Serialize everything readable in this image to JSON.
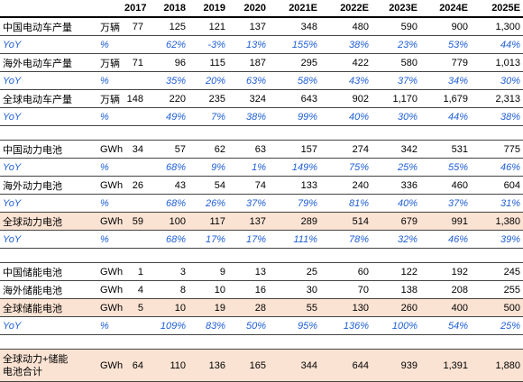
{
  "table": {
    "columns": [
      "2017",
      "2018",
      "2019",
      "2020",
      "2021E",
      "2022E",
      "2023E",
      "2024E",
      "2025E"
    ],
    "groups": [
      {
        "rows": [
          {
            "label": [
              "中国电动车产量"
            ],
            "unit": "万辆",
            "values": [
              "77",
              "125",
              "121",
              "137",
              "348",
              "480",
              "590",
              "900",
              "1,300"
            ]
          },
          {
            "label": [
              "YoY"
            ],
            "unit": "%",
            "italic": true,
            "values": [
              null,
              "62%",
              "-3%",
              "13%",
              "155%",
              "38%",
              "23%",
              "53%",
              "44%"
            ]
          },
          {
            "label": [
              "海外电动车产量"
            ],
            "unit": "万辆",
            "values": [
              "71",
              "96",
              "115",
              "187",
              "295",
              "422",
              "580",
              "779",
              "1,013"
            ]
          },
          {
            "label": [
              "YoY"
            ],
            "unit": "%",
            "italic": true,
            "values": [
              null,
              "35%",
              "20%",
              "63%",
              "58%",
              "43%",
              "37%",
              "34%",
              "30%"
            ]
          },
          {
            "label": [
              "全球电动车产量"
            ],
            "unit": "万辆",
            "values": [
              "148",
              "220",
              "235",
              "324",
              "643",
              "902",
              "1,170",
              "1,679",
              "2,313"
            ]
          },
          {
            "label": [
              "YoY"
            ],
            "unit": "%",
            "italic": true,
            "values": [
              null,
              "49%",
              "7%",
              "38%",
              "99%",
              "40%",
              "30%",
              "44%",
              "38%"
            ]
          }
        ]
      },
      {
        "rows": [
          {
            "label": [
              "中国动力电池"
            ],
            "unit": "GWh",
            "values": [
              "34",
              "57",
              "62",
              "63",
              "157",
              "274",
              "342",
              "531",
              "775"
            ]
          },
          {
            "label": [
              "YoY"
            ],
            "unit": "%",
            "italic": true,
            "values": [
              null,
              "68%",
              "9%",
              "1%",
              "149%",
              "75%",
              "25%",
              "55%",
              "46%"
            ]
          },
          {
            "label": [
              "海外动力电池"
            ],
            "unit": "GWh",
            "values": [
              "26",
              "43",
              "54",
              "74",
              "133",
              "240",
              "336",
              "460",
              "604"
            ]
          },
          {
            "label": [
              "YoY"
            ],
            "unit": "%",
            "italic": true,
            "values": [
              null,
              "68%",
              "26%",
              "37%",
              "79%",
              "81%",
              "40%",
              "37%",
              "31%"
            ]
          },
          {
            "label": [
              "全球动力电池"
            ],
            "unit": "GWh",
            "highlight": true,
            "values": [
              "59",
              "100",
              "117",
              "137",
              "289",
              "514",
              "679",
              "991",
              "1,380"
            ]
          },
          {
            "label": [
              "YoY"
            ],
            "unit": "%",
            "italic": true,
            "values": [
              null,
              "68%",
              "17%",
              "17%",
              "111%",
              "78%",
              "32%",
              "46%",
              "39%"
            ]
          }
        ]
      },
      {
        "rows": [
          {
            "label": [
              "中国储能电池"
            ],
            "unit": "GWh",
            "values": [
              "1",
              "3",
              "9",
              "13",
              "25",
              "60",
              "122",
              "192",
              "245"
            ]
          },
          {
            "label": [
              "海外储能电池"
            ],
            "unit": "GWh",
            "values": [
              "4",
              "8",
              "10",
              "16",
              "30",
              "70",
              "138",
              "208",
              "255"
            ]
          },
          {
            "label": [
              "全球储能电池"
            ],
            "unit": "GWh",
            "highlight": true,
            "values": [
              "5",
              "10",
              "19",
              "28",
              "55",
              "130",
              "260",
              "400",
              "500"
            ]
          },
          {
            "label": [
              "YoY"
            ],
            "unit": "%",
            "italic": true,
            "values": [
              null,
              "109%",
              "83%",
              "50%",
              "95%",
              "136%",
              "100%",
              "54%",
              "25%"
            ]
          }
        ]
      },
      {
        "rows": [
          {
            "label": [
              "全球动力+储能",
              "电池合计"
            ],
            "unit": "GWh",
            "highlight": true,
            "values": [
              "64",
              "110",
              "136",
              "165",
              "344",
              "644",
              "939",
              "1,391",
              "1,880"
            ]
          }
        ]
      }
    ]
  }
}
